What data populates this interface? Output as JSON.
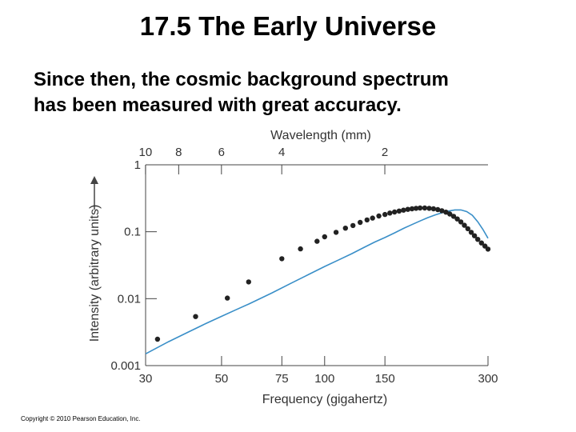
{
  "slide": {
    "title": "17.5 The Early Universe",
    "subtitle_lines": [
      "Since then, the cosmic background spectrum",
      "has been measured with great accuracy."
    ],
    "copyright": "Copyright © 2010 Pearson Education, Inc."
  },
  "colors": {
    "curve": "#3a8fc8",
    "points": "#222222",
    "axis": "#444444",
    "text": "#333333"
  },
  "chart_data": {
    "type": "scatter",
    "title": "",
    "xlabel": "Frequency (gigahertz)",
    "ylabel": "Intensity (arbitrary units)",
    "top_axis_label": "Wavelength (mm)",
    "x_scale": "log",
    "y_scale": "log",
    "xlim": [
      30,
      300
    ],
    "ylim": [
      0.001,
      1
    ],
    "x_ticks": [
      {
        "value": 30,
        "label": "30"
      },
      {
        "value": 50,
        "label": "50"
      },
      {
        "value": 75,
        "label": "75"
      },
      {
        "value": 100,
        "label": "100"
      },
      {
        "value": 150,
        "label": "150"
      },
      {
        "value": 300,
        "label": "300"
      }
    ],
    "top_ticks": [
      {
        "wavelength_mm": 10,
        "label": "10"
      },
      {
        "wavelength_mm": 8,
        "label": "8"
      },
      {
        "wavelength_mm": 6,
        "label": "6"
      },
      {
        "wavelength_mm": 4,
        "label": "4"
      },
      {
        "wavelength_mm": 2,
        "label": "2"
      }
    ],
    "y_ticks": [
      {
        "value": 0.001,
        "label": "0.001"
      },
      {
        "value": 0.01,
        "label": "0.01"
      },
      {
        "value": 0.1,
        "label": "0.1"
      },
      {
        "value": 1,
        "label": "1"
      }
    ],
    "curve": {
      "type": "line",
      "x": [
        30,
        35,
        40,
        45,
        50,
        55,
        60,
        70,
        80,
        90,
        100,
        110,
        120,
        130,
        140,
        150,
        160,
        170,
        180,
        190,
        200,
        210,
        220,
        230,
        240,
        250,
        260,
        270,
        280,
        290,
        300
      ],
      "y": [
        0.0015,
        0.00228,
        0.00318,
        0.00425,
        0.00545,
        0.0068,
        0.0083,
        0.0121,
        0.0171,
        0.0231,
        0.0303,
        0.038,
        0.047,
        0.058,
        0.07,
        0.082,
        0.096,
        0.112,
        0.128,
        0.145,
        0.162,
        0.178,
        0.192,
        0.204,
        0.212,
        0.212,
        0.2,
        0.176,
        0.141,
        0.108,
        0.08
      ]
    },
    "points": {
      "type": "scatter",
      "x": [
        32.5,
        42,
        52,
        60,
        75,
        85,
        95,
        100,
        108,
        115,
        121,
        127,
        133,
        138,
        144,
        150,
        155,
        160,
        165,
        170,
        175,
        180,
        185,
        190,
        196,
        202,
        208,
        214,
        220,
        226,
        232,
        238,
        244,
        250,
        256,
        262,
        268,
        274,
        280,
        287,
        294,
        300
      ],
      "y": [
        0.00248,
        0.0054,
        0.0102,
        0.0178,
        0.0395,
        0.0555,
        0.072,
        0.084,
        0.098,
        0.113,
        0.124,
        0.138,
        0.15,
        0.16,
        0.172,
        0.181,
        0.19,
        0.197,
        0.204,
        0.21,
        0.216,
        0.22,
        0.224,
        0.226,
        0.226,
        0.224,
        0.22,
        0.214,
        0.206,
        0.196,
        0.184,
        0.17,
        0.155,
        0.14,
        0.125,
        0.111,
        0.098,
        0.087,
        0.077,
        0.068,
        0.061,
        0.055
      ]
    },
    "grid": false,
    "legend": "none"
  }
}
